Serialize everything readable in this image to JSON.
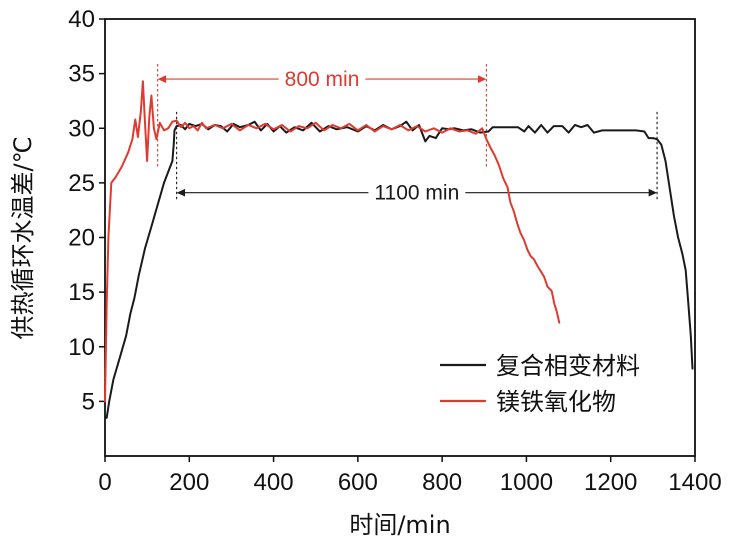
{
  "chart_data": {
    "type": "line",
    "xlabel": "时间/min",
    "ylabel": "供热循环水温差/℃",
    "xlim": [
      0,
      1400
    ],
    "ylim": [
      0,
      40
    ],
    "x_ticks": [
      0,
      200,
      400,
      600,
      800,
      1000,
      1200,
      1400
    ],
    "y_ticks": [
      5,
      10,
      15,
      20,
      25,
      30,
      35,
      40
    ],
    "grid": false,
    "legend_position": "bottom-right",
    "colors": {
      "composite": "#1a1a1a",
      "mgo": "#e03a2f"
    },
    "series": [
      {
        "name": "复合相变材料",
        "color": "#1a1a1a",
        "points": [
          [
            0,
            3.5
          ],
          [
            4,
            3.5
          ],
          [
            10,
            5
          ],
          [
            20,
            7
          ],
          [
            35,
            9
          ],
          [
            50,
            11
          ],
          [
            60,
            13
          ],
          [
            70,
            14.5
          ],
          [
            80,
            16.5
          ],
          [
            95,
            19
          ],
          [
            110,
            21
          ],
          [
            125,
            23
          ],
          [
            140,
            25
          ],
          [
            150,
            26
          ],
          [
            160,
            27
          ],
          [
            163,
            28.5
          ],
          [
            165,
            29.8
          ],
          [
            170,
            30.2
          ],
          [
            180,
            30.3
          ],
          [
            190,
            29.9
          ],
          [
            200,
            30.4
          ],
          [
            215,
            30.2
          ],
          [
            230,
            30.4
          ],
          [
            245,
            29.9
          ],
          [
            260,
            30.3
          ],
          [
            275,
            30.2
          ],
          [
            290,
            29.7
          ],
          [
            305,
            30.4
          ],
          [
            320,
            30.1
          ],
          [
            340,
            30.3
          ],
          [
            355,
            30.6
          ],
          [
            370,
            29.8
          ],
          [
            385,
            30.4
          ],
          [
            400,
            29.7
          ],
          [
            415,
            30.2
          ],
          [
            430,
            29.6
          ],
          [
            450,
            30.1
          ],
          [
            470,
            29.8
          ],
          [
            490,
            30.5
          ],
          [
            510,
            29.7
          ],
          [
            530,
            30.2
          ],
          [
            550,
            29.9
          ],
          [
            575,
            30.1
          ],
          [
            600,
            29.7
          ],
          [
            620,
            30.2
          ],
          [
            640,
            29.8
          ],
          [
            660,
            30.3
          ],
          [
            680,
            29.9
          ],
          [
            700,
            30.2
          ],
          [
            715,
            30.6
          ],
          [
            730,
            29.8
          ],
          [
            745,
            30.3
          ],
          [
            760,
            28.8
          ],
          [
            770,
            29.3
          ],
          [
            785,
            29.1
          ],
          [
            800,
            30.0
          ],
          [
            815,
            29.9
          ],
          [
            830,
            30.0
          ],
          [
            850,
            29.8
          ],
          [
            870,
            29.9
          ],
          [
            890,
            29.6
          ],
          [
            910,
            29.7
          ],
          [
            920,
            30.1
          ],
          [
            940,
            30.1
          ],
          [
            960,
            30.1
          ],
          [
            980,
            30.1
          ],
          [
            995,
            29.7
          ],
          [
            1005,
            30.2
          ],
          [
            1020,
            29.6
          ],
          [
            1035,
            30.3
          ],
          [
            1050,
            29.6
          ],
          [
            1065,
            30.2
          ],
          [
            1085,
            30.2
          ],
          [
            1100,
            29.6
          ],
          [
            1115,
            30.3
          ],
          [
            1130,
            30.1
          ],
          [
            1145,
            30.3
          ],
          [
            1160,
            29.6
          ],
          [
            1180,
            29.8
          ],
          [
            1200,
            29.8
          ],
          [
            1220,
            29.8
          ],
          [
            1240,
            29.8
          ],
          [
            1260,
            29.8
          ],
          [
            1280,
            29.7
          ],
          [
            1290,
            29.1
          ],
          [
            1300,
            29.1
          ],
          [
            1310,
            29.0
          ],
          [
            1320,
            28.5
          ],
          [
            1330,
            27
          ],
          [
            1340,
            24.5
          ],
          [
            1350,
            22
          ],
          [
            1360,
            20
          ],
          [
            1370,
            18.5
          ],
          [
            1378,
            17
          ],
          [
            1384,
            14
          ],
          [
            1390,
            11
          ],
          [
            1394,
            8
          ]
        ]
      },
      {
        "name": "镁铁氧化物",
        "color": "#e03a2f",
        "points": [
          [
            0,
            5
          ],
          [
            4,
            14
          ],
          [
            8,
            20
          ],
          [
            15,
            25
          ],
          [
            25,
            25.5
          ],
          [
            40,
            26.5
          ],
          [
            55,
            27.8
          ],
          [
            65,
            29
          ],
          [
            72,
            30.8
          ],
          [
            78,
            29.2
          ],
          [
            85,
            31.5
          ],
          [
            90,
            34.3
          ],
          [
            95,
            30.5
          ],
          [
            100,
            27
          ],
          [
            105,
            31
          ],
          [
            110,
            33
          ],
          [
            116,
            30
          ],
          [
            122,
            29
          ],
          [
            130,
            30.5
          ],
          [
            140,
            29.8
          ],
          [
            150,
            30.0
          ],
          [
            160,
            30.6
          ],
          [
            170,
            30.7
          ],
          [
            180,
            30.1
          ],
          [
            190,
            30.5
          ],
          [
            200,
            30.0
          ],
          [
            210,
            30.2
          ],
          [
            220,
            29.8
          ],
          [
            230,
            30.5
          ],
          [
            240,
            30.0
          ],
          [
            260,
            30.3
          ],
          [
            280,
            30.0
          ],
          [
            300,
            30.4
          ],
          [
            320,
            29.8
          ],
          [
            340,
            30.3
          ],
          [
            360,
            30.0
          ],
          [
            380,
            30.4
          ],
          [
            400,
            29.9
          ],
          [
            420,
            30.3
          ],
          [
            440,
            29.7
          ],
          [
            460,
            30.2
          ],
          [
            480,
            30.0
          ],
          [
            500,
            30.5
          ],
          [
            520,
            29.8
          ],
          [
            540,
            30.3
          ],
          [
            560,
            30.0
          ],
          [
            580,
            30.4
          ],
          [
            600,
            29.8
          ],
          [
            620,
            30.3
          ],
          [
            640,
            29.7
          ],
          [
            660,
            30.2
          ],
          [
            680,
            29.9
          ],
          [
            700,
            30.3
          ],
          [
            720,
            29.8
          ],
          [
            740,
            30.2
          ],
          [
            760,
            29.7
          ],
          [
            780,
            30.0
          ],
          [
            800,
            29.6
          ],
          [
            820,
            30.0
          ],
          [
            840,
            29.7
          ],
          [
            860,
            29.8
          ],
          [
            880,
            29.5
          ],
          [
            895,
            30.0
          ],
          [
            905,
            29.0
          ],
          [
            915,
            28.2
          ],
          [
            925,
            27.5
          ],
          [
            935,
            26.6
          ],
          [
            945,
            25.4
          ],
          [
            955,
            24.6
          ],
          [
            962,
            23.2
          ],
          [
            970,
            22.4
          ],
          [
            978,
            21.3
          ],
          [
            986,
            20.4
          ],
          [
            994,
            19.8
          ],
          [
            1002,
            18.9
          ],
          [
            1010,
            18.3
          ],
          [
            1018,
            18.0
          ],
          [
            1026,
            17.4
          ],
          [
            1034,
            16.9
          ],
          [
            1042,
            16.4
          ],
          [
            1050,
            15.5
          ],
          [
            1060,
            15.1
          ],
          [
            1066,
            14.0
          ],
          [
            1072,
            13.2
          ],
          [
            1078,
            12.2
          ]
        ]
      }
    ],
    "annotations": [
      {
        "label": "800 min",
        "from": 125,
        "to": 905,
        "y": 34.5,
        "color": "#e03a2f",
        "guide_from": 26.5,
        "guide_to": 36
      },
      {
        "label": "1100 min",
        "from": 170,
        "to": 1310,
        "y": 24.1,
        "color": "#1a1a1a",
        "guide_from": 23.5,
        "guide_to": 31.5
      }
    ]
  }
}
